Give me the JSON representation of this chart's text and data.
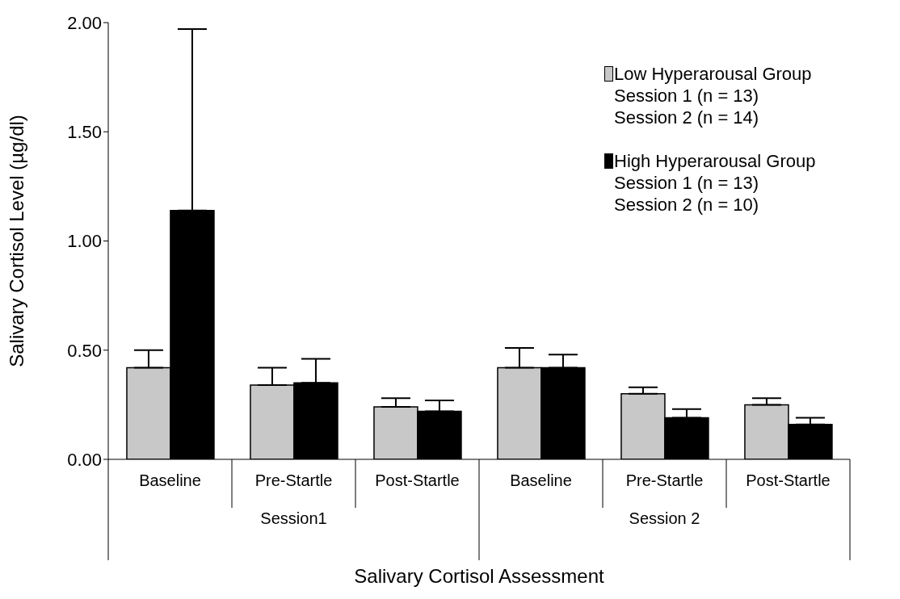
{
  "chart_data": {
    "type": "bar",
    "xlabel": "Salivary Cortisol Assessment",
    "ylabel": "Salivary Cortisol Level (µg/dl)",
    "categories": [
      "Baseline",
      "Pre-Startle",
      "Post-Startle",
      "Baseline",
      "Pre-Startle",
      "Post-Startle"
    ],
    "series": [
      {
        "name": "Low Hyperarousal Group",
        "color": "#c8c8c8",
        "values": [
          0.42,
          0.34,
          0.24,
          0.42,
          0.3,
          0.25
        ],
        "errors": [
          [
            0.42,
            0.5
          ],
          [
            0.34,
            0.42
          ],
          [
            0.24,
            0.28
          ],
          [
            0.42,
            0.51
          ],
          [
            0.3,
            0.33
          ],
          [
            0.25,
            0.28
          ]
        ]
      },
      {
        "name": "High Hyperarousal Group",
        "color": "#000000",
        "values": [
          1.14,
          0.35,
          0.22,
          0.42,
          0.19,
          0.16
        ],
        "errors": [
          [
            1.14,
            1.97
          ],
          [
            0.35,
            0.46
          ],
          [
            0.22,
            0.27
          ],
          [
            0.42,
            0.48
          ],
          [
            0.19,
            0.23
          ],
          [
            0.16,
            0.19
          ]
        ]
      }
    ],
    "annotations": [
      "Session1",
      "Session 2",
      "Session 1 (n = 13)",
      "Session 2 (n = 14)",
      "Session 1 (n = 13)",
      "Session 2 (n = 10)"
    ],
    "ylim": [
      0,
      2
    ],
    "yticks": [
      {
        "value": 0,
        "label": "0.00"
      },
      {
        "value": 0.5,
        "label": "0.50"
      },
      {
        "value": 1,
        "label": "1.00"
      },
      {
        "value": 1.5,
        "label": "1.50"
      },
      {
        "value": 2,
        "label": "2.00"
      }
    ],
    "grid": false,
    "legend": "top right"
  }
}
